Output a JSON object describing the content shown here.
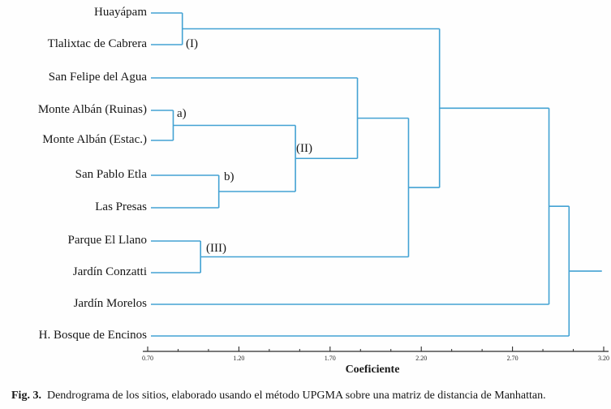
{
  "figure": {
    "caption_label": "Fig. 3.",
    "caption_text": "Dendrograma de los sitios, elaborado usando el método UPGMA sobre una matriz de distancia de Manhattan."
  },
  "chart_data": {
    "type": "dendrogram",
    "orientation": "right",
    "xlabel": "Coeficiente",
    "leaves": [
      "Huayápam",
      "Tlalixtac de Cabrera",
      "San Felipe del Agua",
      "Monte Albán (Ruinas)",
      "Monte Albán (Estac.)",
      "San Pablo Etla",
      "Las Presas",
      "Parque El Llano",
      "Jardín Conzatti",
      "Jardín Morelos",
      "H. Bosque de Encinos"
    ],
    "cluster_labels": [
      "(I)",
      "a)",
      "(II)",
      "b)",
      "(III)"
    ],
    "tree": {
      "coef": 3.01,
      "children": [
        {
          "coef": 2.9,
          "children": [
            {
              "coef": 2.3,
              "children": [
                {
                  "coef": 0.89,
                  "label": "(I)",
                  "children": [
                    {
                      "leaf": 0
                    },
                    {
                      "leaf": 1
                    }
                  ]
                },
                {
                  "coef": 2.13,
                  "children": [
                    {
                      "coef": 1.85,
                      "children": [
                        {
                          "leaf": 2
                        },
                        {
                          "coef": 1.51,
                          "label": "(II)",
                          "children": [
                            {
                              "coef": 0.84,
                              "label": "a)",
                              "children": [
                                {
                                  "leaf": 3
                                },
                                {
                                  "leaf": 4
                                }
                              ]
                            },
                            {
                              "coef": 1.09,
                              "label": "b)",
                              "children": [
                                {
                                  "leaf": 5
                                },
                                {
                                  "leaf": 6
                                }
                              ]
                            }
                          ]
                        }
                      ]
                    },
                    {
                      "coef": 0.99,
                      "label": "(III)",
                      "children": [
                        {
                          "leaf": 7
                        },
                        {
                          "leaf": 8
                        }
                      ]
                    }
                  ]
                }
              ]
            },
            {
              "leaf": 9
            }
          ]
        },
        {
          "leaf": 10
        }
      ]
    },
    "root_line_end": 3.19,
    "axis": {
      "title": "Coeficiente",
      "min": 0.7,
      "max": 3.2,
      "ticks": [
        0.7,
        1.2,
        1.7,
        2.2,
        2.7,
        3.2
      ],
      "tick_labels": [
        "0.70",
        "1.20",
        "1.70",
        "2.20",
        "2.70",
        "3.20"
      ],
      "minor_ticks_per_interval": 2
    },
    "colors": {
      "line": "#43a2d3",
      "axis": "#2b2b2b"
    }
  }
}
